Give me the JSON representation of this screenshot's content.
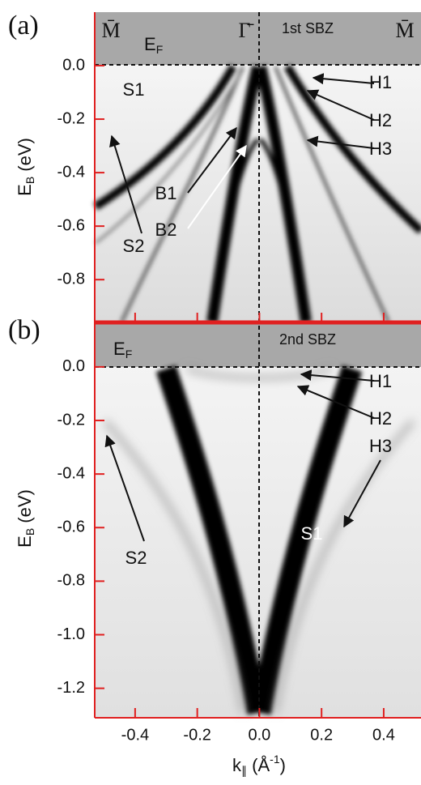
{
  "chart_data": [
    {
      "type": "image",
      "panel_label": "(a)",
      "zone_label": "1st SBZ",
      "fermi_label": [
        "E",
        "F"
      ],
      "symmetry_points": [
        "M̄",
        "Γ̄",
        "M̄"
      ],
      "ylabel": [
        "E",
        "B",
        " (eV)"
      ],
      "xlim": [
        -0.53,
        0.52
      ],
      "ylim": [
        -0.96,
        0.2
      ],
      "yticks": [
        {
          "value": 0,
          "label": "0.0"
        },
        -0.2,
        -0.4,
        -0.6,
        -0.8
      ],
      "annotations": [
        "S1",
        "S2",
        "B1",
        "B2",
        "H1",
        "H2",
        "H3"
      ]
    },
    {
      "type": "image",
      "panel_label": "(b)",
      "zone_label": "2nd SBZ",
      "fermi_label": [
        "E",
        "F"
      ],
      "ylabel": [
        "E",
        "B",
        " (eV)"
      ],
      "xlabel": [
        "k",
        "∥",
        " (Å",
        "-1",
        ")"
      ],
      "xlim": [
        -0.53,
        0.52
      ],
      "ylim": [
        -1.31,
        0.16
      ],
      "xticks": [
        -0.4,
        -0.2,
        {
          "value": 0,
          "label": "0.0"
        },
        0.2,
        0.4
      ],
      "yticks": [
        {
          "value": 0,
          "label": "0.0"
        },
        -0.2,
        -0.4,
        -0.6,
        -0.8,
        {
          "value": -1,
          "label": "-1.0"
        },
        -1.2
      ],
      "annotations": [
        "H1",
        "H2",
        "H3",
        "S1",
        "S2"
      ]
    }
  ]
}
